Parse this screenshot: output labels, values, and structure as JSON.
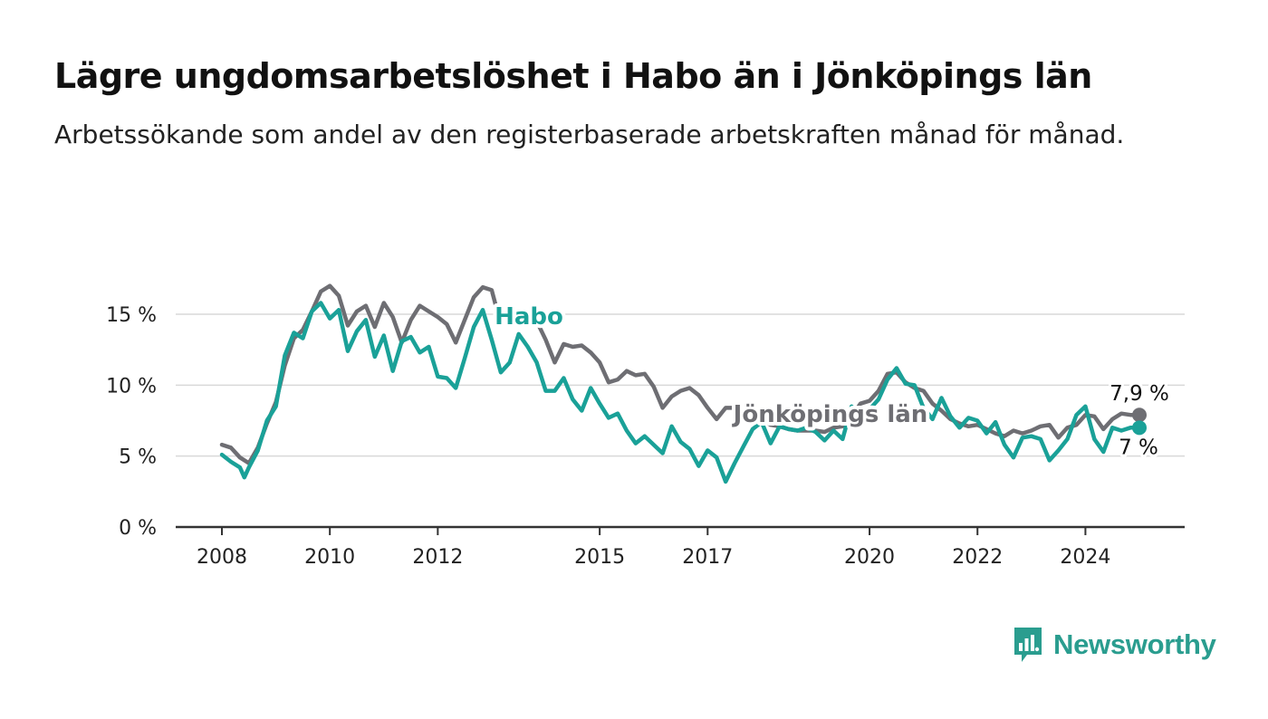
{
  "title": "Lägre ungdomsarbetslöshet i Habo än i Jönköpings län",
  "subtitle": "Arbetssökande som andel av den registerbaserade arbetskraften månad för månad.",
  "brand": {
    "name": "Newsworthy",
    "icon": "newsworthy-logo-icon",
    "color": "#2a9d8f"
  },
  "chart_data": {
    "type": "line",
    "x_unit": "month",
    "xlim": [
      "2008-01",
      "2025-12"
    ],
    "ylim": [
      0,
      18
    ],
    "yticks": [
      0,
      5,
      10,
      15
    ],
    "ytick_labels": [
      "0 %",
      "5 %",
      "10 %",
      "15 %"
    ],
    "xticks": [
      "2008-01",
      "2010-01",
      "2012-01",
      "2015-01",
      "2017-01",
      "2020-01",
      "2022-01",
      "2024-01"
    ],
    "xtick_labels": [
      "2008",
      "2010",
      "2012",
      "2015",
      "2017",
      "2020",
      "2022",
      "2024"
    ],
    "grid": true,
    "series": [
      {
        "name": "Jönköpings län",
        "color": "#6e6e73",
        "end_label": "7,9 %",
        "points": [
          [
            "2008-01",
            5.8
          ],
          [
            "2008-03",
            5.6
          ],
          [
            "2008-05",
            4.9
          ],
          [
            "2008-07",
            4.5
          ],
          [
            "2008-09",
            5.6
          ],
          [
            "2008-11",
            7.3
          ],
          [
            "2009-01",
            8.8
          ],
          [
            "2009-03",
            11.4
          ],
          [
            "2009-05",
            13.3
          ],
          [
            "2009-07",
            13.9
          ],
          [
            "2009-09",
            15.2
          ],
          [
            "2009-11",
            16.6
          ],
          [
            "2010-01",
            17.0
          ],
          [
            "2010-03",
            16.3
          ],
          [
            "2010-05",
            14.2
          ],
          [
            "2010-07",
            15.2
          ],
          [
            "2010-09",
            15.6
          ],
          [
            "2010-11",
            14.1
          ],
          [
            "2011-01",
            15.8
          ],
          [
            "2011-03",
            14.8
          ],
          [
            "2011-05",
            13.0
          ],
          [
            "2011-07",
            14.6
          ],
          [
            "2011-09",
            15.6
          ],
          [
            "2011-11",
            15.2
          ],
          [
            "2012-01",
            14.8
          ],
          [
            "2012-03",
            14.3
          ],
          [
            "2012-05",
            13.0
          ],
          [
            "2012-07",
            14.6
          ],
          [
            "2012-09",
            16.2
          ],
          [
            "2012-11",
            16.9
          ],
          [
            "2013-01",
            16.7
          ],
          [
            "2013-03",
            14.3
          ],
          [
            "2013-05",
            14.6
          ],
          [
            "2013-07",
            15.2
          ],
          [
            "2013-09",
            14.9
          ],
          [
            "2013-11",
            14.5
          ],
          [
            "2014-01",
            13.2
          ],
          [
            "2014-03",
            11.6
          ],
          [
            "2014-05",
            12.9
          ],
          [
            "2014-07",
            12.7
          ],
          [
            "2014-09",
            12.8
          ],
          [
            "2014-11",
            12.3
          ],
          [
            "2015-01",
            11.6
          ],
          [
            "2015-03",
            10.2
          ],
          [
            "2015-05",
            10.4
          ],
          [
            "2015-07",
            11.0
          ],
          [
            "2015-09",
            10.7
          ],
          [
            "2015-11",
            10.8
          ],
          [
            "2016-01",
            9.9
          ],
          [
            "2016-03",
            8.4
          ],
          [
            "2016-05",
            9.2
          ],
          [
            "2016-07",
            9.6
          ],
          [
            "2016-09",
            9.8
          ],
          [
            "2016-11",
            9.3
          ],
          [
            "2017-01",
            8.4
          ],
          [
            "2017-03",
            7.6
          ],
          [
            "2017-05",
            8.4
          ],
          [
            "2017-07",
            8.4
          ],
          [
            "2017-09",
            8.2
          ],
          [
            "2017-11",
            7.8
          ],
          [
            "2018-01",
            7.6
          ],
          [
            "2018-03",
            7.2
          ],
          [
            "2018-05",
            7.1
          ],
          [
            "2018-07",
            6.9
          ],
          [
            "2018-09",
            6.8
          ],
          [
            "2018-11",
            6.8
          ],
          [
            "2019-01",
            6.8
          ],
          [
            "2019-03",
            6.7
          ],
          [
            "2019-05",
            7.0
          ],
          [
            "2019-07",
            7.1
          ],
          [
            "2019-09",
            7.8
          ],
          [
            "2019-11",
            8.7
          ],
          [
            "2020-01",
            8.9
          ],
          [
            "2020-03",
            9.6
          ],
          [
            "2020-05",
            10.8
          ],
          [
            "2020-07",
            10.9
          ],
          [
            "2020-09",
            10.2
          ],
          [
            "2020-11",
            9.8
          ],
          [
            "2021-01",
            9.6
          ],
          [
            "2021-03",
            8.7
          ],
          [
            "2021-05",
            8.2
          ],
          [
            "2021-07",
            7.6
          ],
          [
            "2021-09",
            7.3
          ],
          [
            "2021-11",
            7.1
          ],
          [
            "2022-01",
            7.2
          ],
          [
            "2022-03",
            6.9
          ],
          [
            "2022-05",
            6.6
          ],
          [
            "2022-07",
            6.4
          ],
          [
            "2022-09",
            6.8
          ],
          [
            "2022-11",
            6.6
          ],
          [
            "2023-01",
            6.8
          ],
          [
            "2023-03",
            7.1
          ],
          [
            "2023-05",
            7.2
          ],
          [
            "2023-07",
            6.3
          ],
          [
            "2023-09",
            7.0
          ],
          [
            "2023-11",
            7.2
          ],
          [
            "2024-01",
            7.9
          ],
          [
            "2024-03",
            7.8
          ],
          [
            "2024-05",
            6.9
          ],
          [
            "2024-07",
            7.6
          ],
          [
            "2024-09",
            8.0
          ],
          [
            "2024-11",
            7.9
          ],
          [
            "2025-01",
            7.9
          ]
        ]
      },
      {
        "name": "Habo",
        "color": "#1aa198",
        "end_label": "7 %",
        "points": [
          [
            "2008-01",
            5.1
          ],
          [
            "2008-03",
            4.6
          ],
          [
            "2008-05",
            4.2
          ],
          [
            "2008-06",
            3.5
          ],
          [
            "2008-07",
            4.2
          ],
          [
            "2008-09",
            5.4
          ],
          [
            "2008-11",
            7.5
          ],
          [
            "2009-01",
            8.5
          ],
          [
            "2009-03",
            12.1
          ],
          [
            "2009-05",
            13.7
          ],
          [
            "2009-07",
            13.3
          ],
          [
            "2009-09",
            15.2
          ],
          [
            "2009-11",
            15.8
          ],
          [
            "2010-01",
            14.7
          ],
          [
            "2010-03",
            15.3
          ],
          [
            "2010-05",
            12.4
          ],
          [
            "2010-07",
            13.8
          ],
          [
            "2010-09",
            14.6
          ],
          [
            "2010-11",
            12.0
          ],
          [
            "2011-01",
            13.5
          ],
          [
            "2011-03",
            11.0
          ],
          [
            "2011-05",
            13.1
          ],
          [
            "2011-07",
            13.4
          ],
          [
            "2011-09",
            12.3
          ],
          [
            "2011-11",
            12.7
          ],
          [
            "2012-01",
            10.6
          ],
          [
            "2012-03",
            10.5
          ],
          [
            "2012-05",
            9.8
          ],
          [
            "2012-07",
            11.9
          ],
          [
            "2012-09",
            14.1
          ],
          [
            "2012-11",
            15.3
          ],
          [
            "2013-01",
            13.2
          ],
          [
            "2013-03",
            10.9
          ],
          [
            "2013-05",
            11.6
          ],
          [
            "2013-07",
            13.6
          ],
          [
            "2013-09",
            12.7
          ],
          [
            "2013-11",
            11.6
          ],
          [
            "2014-01",
            9.6
          ],
          [
            "2014-03",
            9.6
          ],
          [
            "2014-05",
            10.5
          ],
          [
            "2014-07",
            9.0
          ],
          [
            "2014-09",
            8.2
          ],
          [
            "2014-11",
            9.8
          ],
          [
            "2015-01",
            8.7
          ],
          [
            "2015-03",
            7.7
          ],
          [
            "2015-05",
            8.0
          ],
          [
            "2015-07",
            6.8
          ],
          [
            "2015-09",
            5.9
          ],
          [
            "2015-11",
            6.4
          ],
          [
            "2016-01",
            5.8
          ],
          [
            "2016-03",
            5.2
          ],
          [
            "2016-05",
            7.1
          ],
          [
            "2016-07",
            6.0
          ],
          [
            "2016-09",
            5.5
          ],
          [
            "2016-11",
            4.3
          ],
          [
            "2017-01",
            5.4
          ],
          [
            "2017-03",
            4.9
          ],
          [
            "2017-05",
            3.2
          ],
          [
            "2017-07",
            4.5
          ],
          [
            "2017-09",
            5.7
          ],
          [
            "2017-11",
            6.9
          ],
          [
            "2018-01",
            7.4
          ],
          [
            "2018-03",
            5.9
          ],
          [
            "2018-05",
            7.1
          ],
          [
            "2018-07",
            6.9
          ],
          [
            "2018-09",
            6.8
          ],
          [
            "2018-11",
            7.0
          ],
          [
            "2019-01",
            6.7
          ],
          [
            "2019-03",
            6.1
          ],
          [
            "2019-05",
            6.8
          ],
          [
            "2019-07",
            6.2
          ],
          [
            "2019-09",
            8.5
          ],
          [
            "2019-11",
            7.9
          ],
          [
            "2020-01",
            8.3
          ],
          [
            "2020-03",
            9.0
          ],
          [
            "2020-05",
            10.4
          ],
          [
            "2020-07",
            11.2
          ],
          [
            "2020-09",
            10.1
          ],
          [
            "2020-11",
            10.0
          ],
          [
            "2021-01",
            8.4
          ],
          [
            "2021-03",
            7.6
          ],
          [
            "2021-05",
            9.1
          ],
          [
            "2021-07",
            7.8
          ],
          [
            "2021-09",
            7.0
          ],
          [
            "2021-11",
            7.7
          ],
          [
            "2022-01",
            7.5
          ],
          [
            "2022-03",
            6.6
          ],
          [
            "2022-05",
            7.4
          ],
          [
            "2022-07",
            5.8
          ],
          [
            "2022-09",
            4.9
          ],
          [
            "2022-11",
            6.3
          ],
          [
            "2023-01",
            6.4
          ],
          [
            "2023-03",
            6.2
          ],
          [
            "2023-05",
            4.7
          ],
          [
            "2023-07",
            5.4
          ],
          [
            "2023-09",
            6.2
          ],
          [
            "2023-11",
            7.9
          ],
          [
            "2024-01",
            8.5
          ],
          [
            "2024-03",
            6.2
          ],
          [
            "2024-05",
            5.3
          ],
          [
            "2024-07",
            7.0
          ],
          [
            "2024-09",
            6.8
          ],
          [
            "2024-11",
            7.0
          ],
          [
            "2025-01",
            7.0
          ]
        ]
      }
    ]
  }
}
